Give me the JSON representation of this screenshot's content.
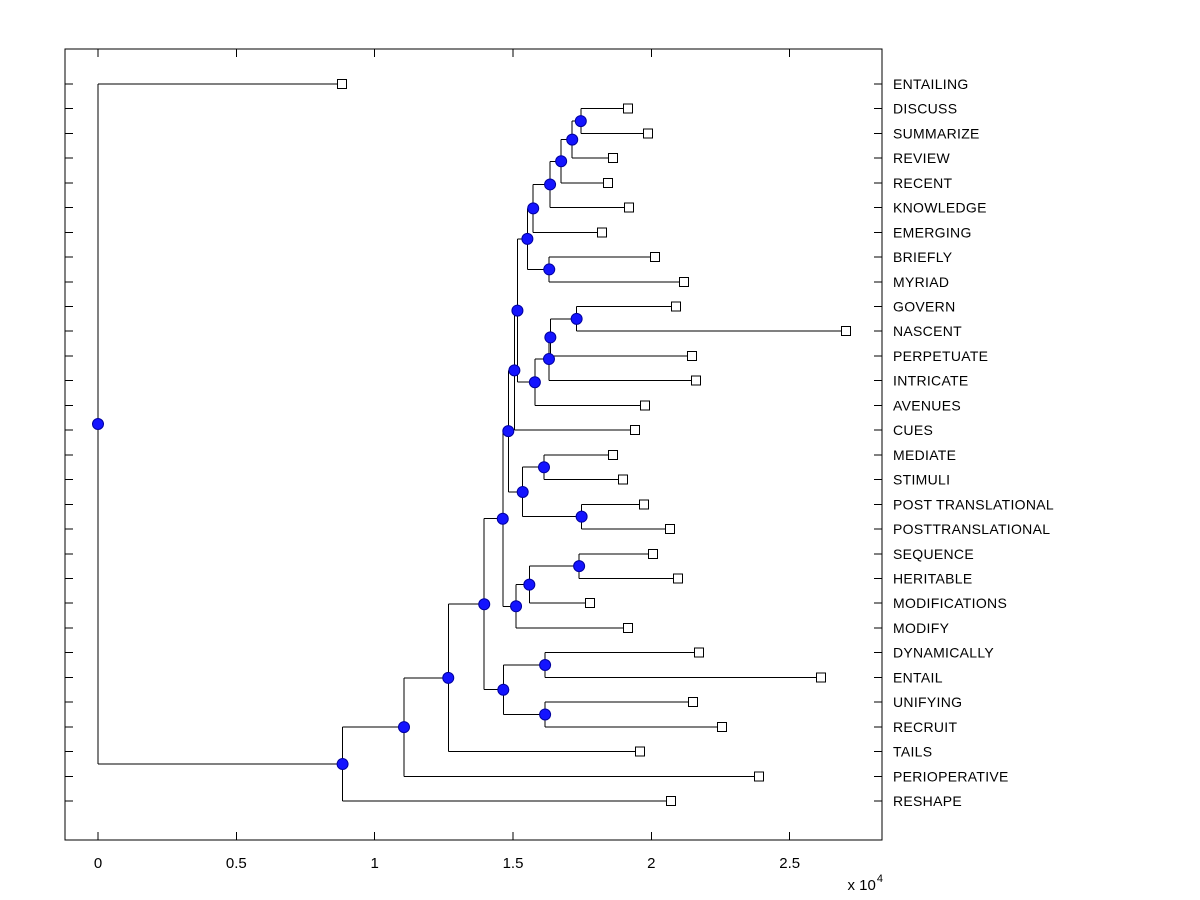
{
  "figure": {
    "background_color": "#ffffff",
    "line_color": "#000000",
    "text_color": "#000000"
  },
  "chart_data": {
    "type": "dendrogram",
    "orientation": "left-to-right",
    "title": "",
    "xlabel": "",
    "ylabel": "",
    "grid": false,
    "x_unit_scale": 10000,
    "x_multiplier_base": "x 10",
    "x_multiplier_exp": "4",
    "xlim": [
      -0.12,
      2.835
    ],
    "x_ticks": [
      {
        "label": "0",
        "value": 0
      },
      {
        "label": "0.5",
        "value": 0.5
      },
      {
        "label": "1",
        "value": 1
      },
      {
        "label": "1.5",
        "value": 1.5
      },
      {
        "label": "2",
        "value": 2
      },
      {
        "label": "2.5",
        "value": 2.5
      }
    ],
    "marker_colors": {
      "internal_fill": "#1414ff",
      "internal_edge": "#0000a0",
      "leaf_fill": "#ffffff",
      "leaf_edge": "#000000"
    },
    "leaves": [
      {
        "label": "ENTAILING",
        "value": 0.882
      },
      {
        "label": "DISCUSS",
        "value": 1.916
      },
      {
        "label": "SUMMARIZE",
        "value": 1.988
      },
      {
        "label": "REVIEW",
        "value": 1.862
      },
      {
        "label": "RECENT",
        "value": 1.843
      },
      {
        "label": "KNOWLEDGE",
        "value": 1.919
      },
      {
        "label": "EMERGING",
        "value": 1.822
      },
      {
        "label": "BRIEFLY",
        "value": 2.013
      },
      {
        "label": "MYRIAD",
        "value": 2.118
      },
      {
        "label": "GOVERN",
        "value": 2.089
      },
      {
        "label": "NASCENT",
        "value": 2.703
      },
      {
        "label": "PERPETUATE",
        "value": 2.147
      },
      {
        "label": "INTRICATE",
        "value": 2.161
      },
      {
        "label": "AVENUES",
        "value": 1.977
      },
      {
        "label": "CUES",
        "value": 1.941
      },
      {
        "label": "MEDIATE",
        "value": 1.862
      },
      {
        "label": "STIMULI",
        "value": 1.898
      },
      {
        "label": "POST TRANSLATIONAL",
        "value": 1.973
      },
      {
        "label": "POSTTRANSLATIONAL",
        "value": 2.068
      },
      {
        "label": "SEQUENCE",
        "value": 2.006
      },
      {
        "label": "HERITABLE",
        "value": 2.096
      },
      {
        "label": "MODIFICATIONS",
        "value": 1.778
      },
      {
        "label": "MODIFY",
        "value": 1.916
      },
      {
        "label": "DYNAMICALLY",
        "value": 2.172
      },
      {
        "label": "ENTAIL",
        "value": 2.613
      },
      {
        "label": "UNIFYING",
        "value": 2.15
      },
      {
        "label": "RECRUIT",
        "value": 2.255
      },
      {
        "label": "TAILS",
        "value": 1.959
      },
      {
        "label": "PERIOPERATIVE",
        "value": 2.389
      },
      {
        "label": "RESHAPE",
        "value": 2.071
      }
    ],
    "internal_nodes": [
      {
        "children": [
          1,
          2
        ],
        "value": 1.745
      },
      {
        "children": [
          30,
          3
        ],
        "value": 1.714
      },
      {
        "children": [
          31,
          4
        ],
        "value": 1.674
      },
      {
        "children": [
          32,
          5
        ],
        "value": 1.634
      },
      {
        "children": [
          33,
          6
        ],
        "value": 1.573
      },
      {
        "children": [
          7,
          8
        ],
        "value": 1.631
      },
      {
        "children": [
          34,
          35
        ],
        "value": 1.552
      },
      {
        "children": [
          9,
          10
        ],
        "value": 1.73
      },
      {
        "children": [
          37,
          11
        ],
        "value": 1.635
      },
      {
        "children": [
          38,
          12
        ],
        "value": 1.63
      },
      {
        "children": [
          39,
          13
        ],
        "value": 1.579
      },
      {
        "children": [
          36,
          40
        ],
        "value": 1.516
      },
      {
        "children": [
          41,
          14
        ],
        "value": 1.505
      },
      {
        "children": [
          15,
          16
        ],
        "value": 1.612
      },
      {
        "children": [
          17,
          18
        ],
        "value": 1.748
      },
      {
        "children": [
          43,
          44
        ],
        "value": 1.535
      },
      {
        "children": [
          42,
          45
        ],
        "value": 1.483
      },
      {
        "children": [
          19,
          20
        ],
        "value": 1.739
      },
      {
        "children": [
          47,
          21
        ],
        "value": 1.559
      },
      {
        "children": [
          48,
          22
        ],
        "value": 1.511
      },
      {
        "children": [
          46,
          49
        ],
        "value": 1.463
      },
      {
        "children": [
          23,
          24
        ],
        "value": 1.616
      },
      {
        "children": [
          25,
          26
        ],
        "value": 1.616
      },
      {
        "children": [
          51,
          52
        ],
        "value": 1.465
      },
      {
        "children": [
          50,
          53
        ],
        "value": 1.396
      },
      {
        "children": [
          54,
          27
        ],
        "value": 1.266
      },
      {
        "children": [
          55,
          28
        ],
        "value": 1.106
      },
      {
        "children": [
          56,
          29
        ],
        "value": 0.884
      },
      {
        "children": [
          0,
          57
        ],
        "value": 0.0
      }
    ]
  }
}
